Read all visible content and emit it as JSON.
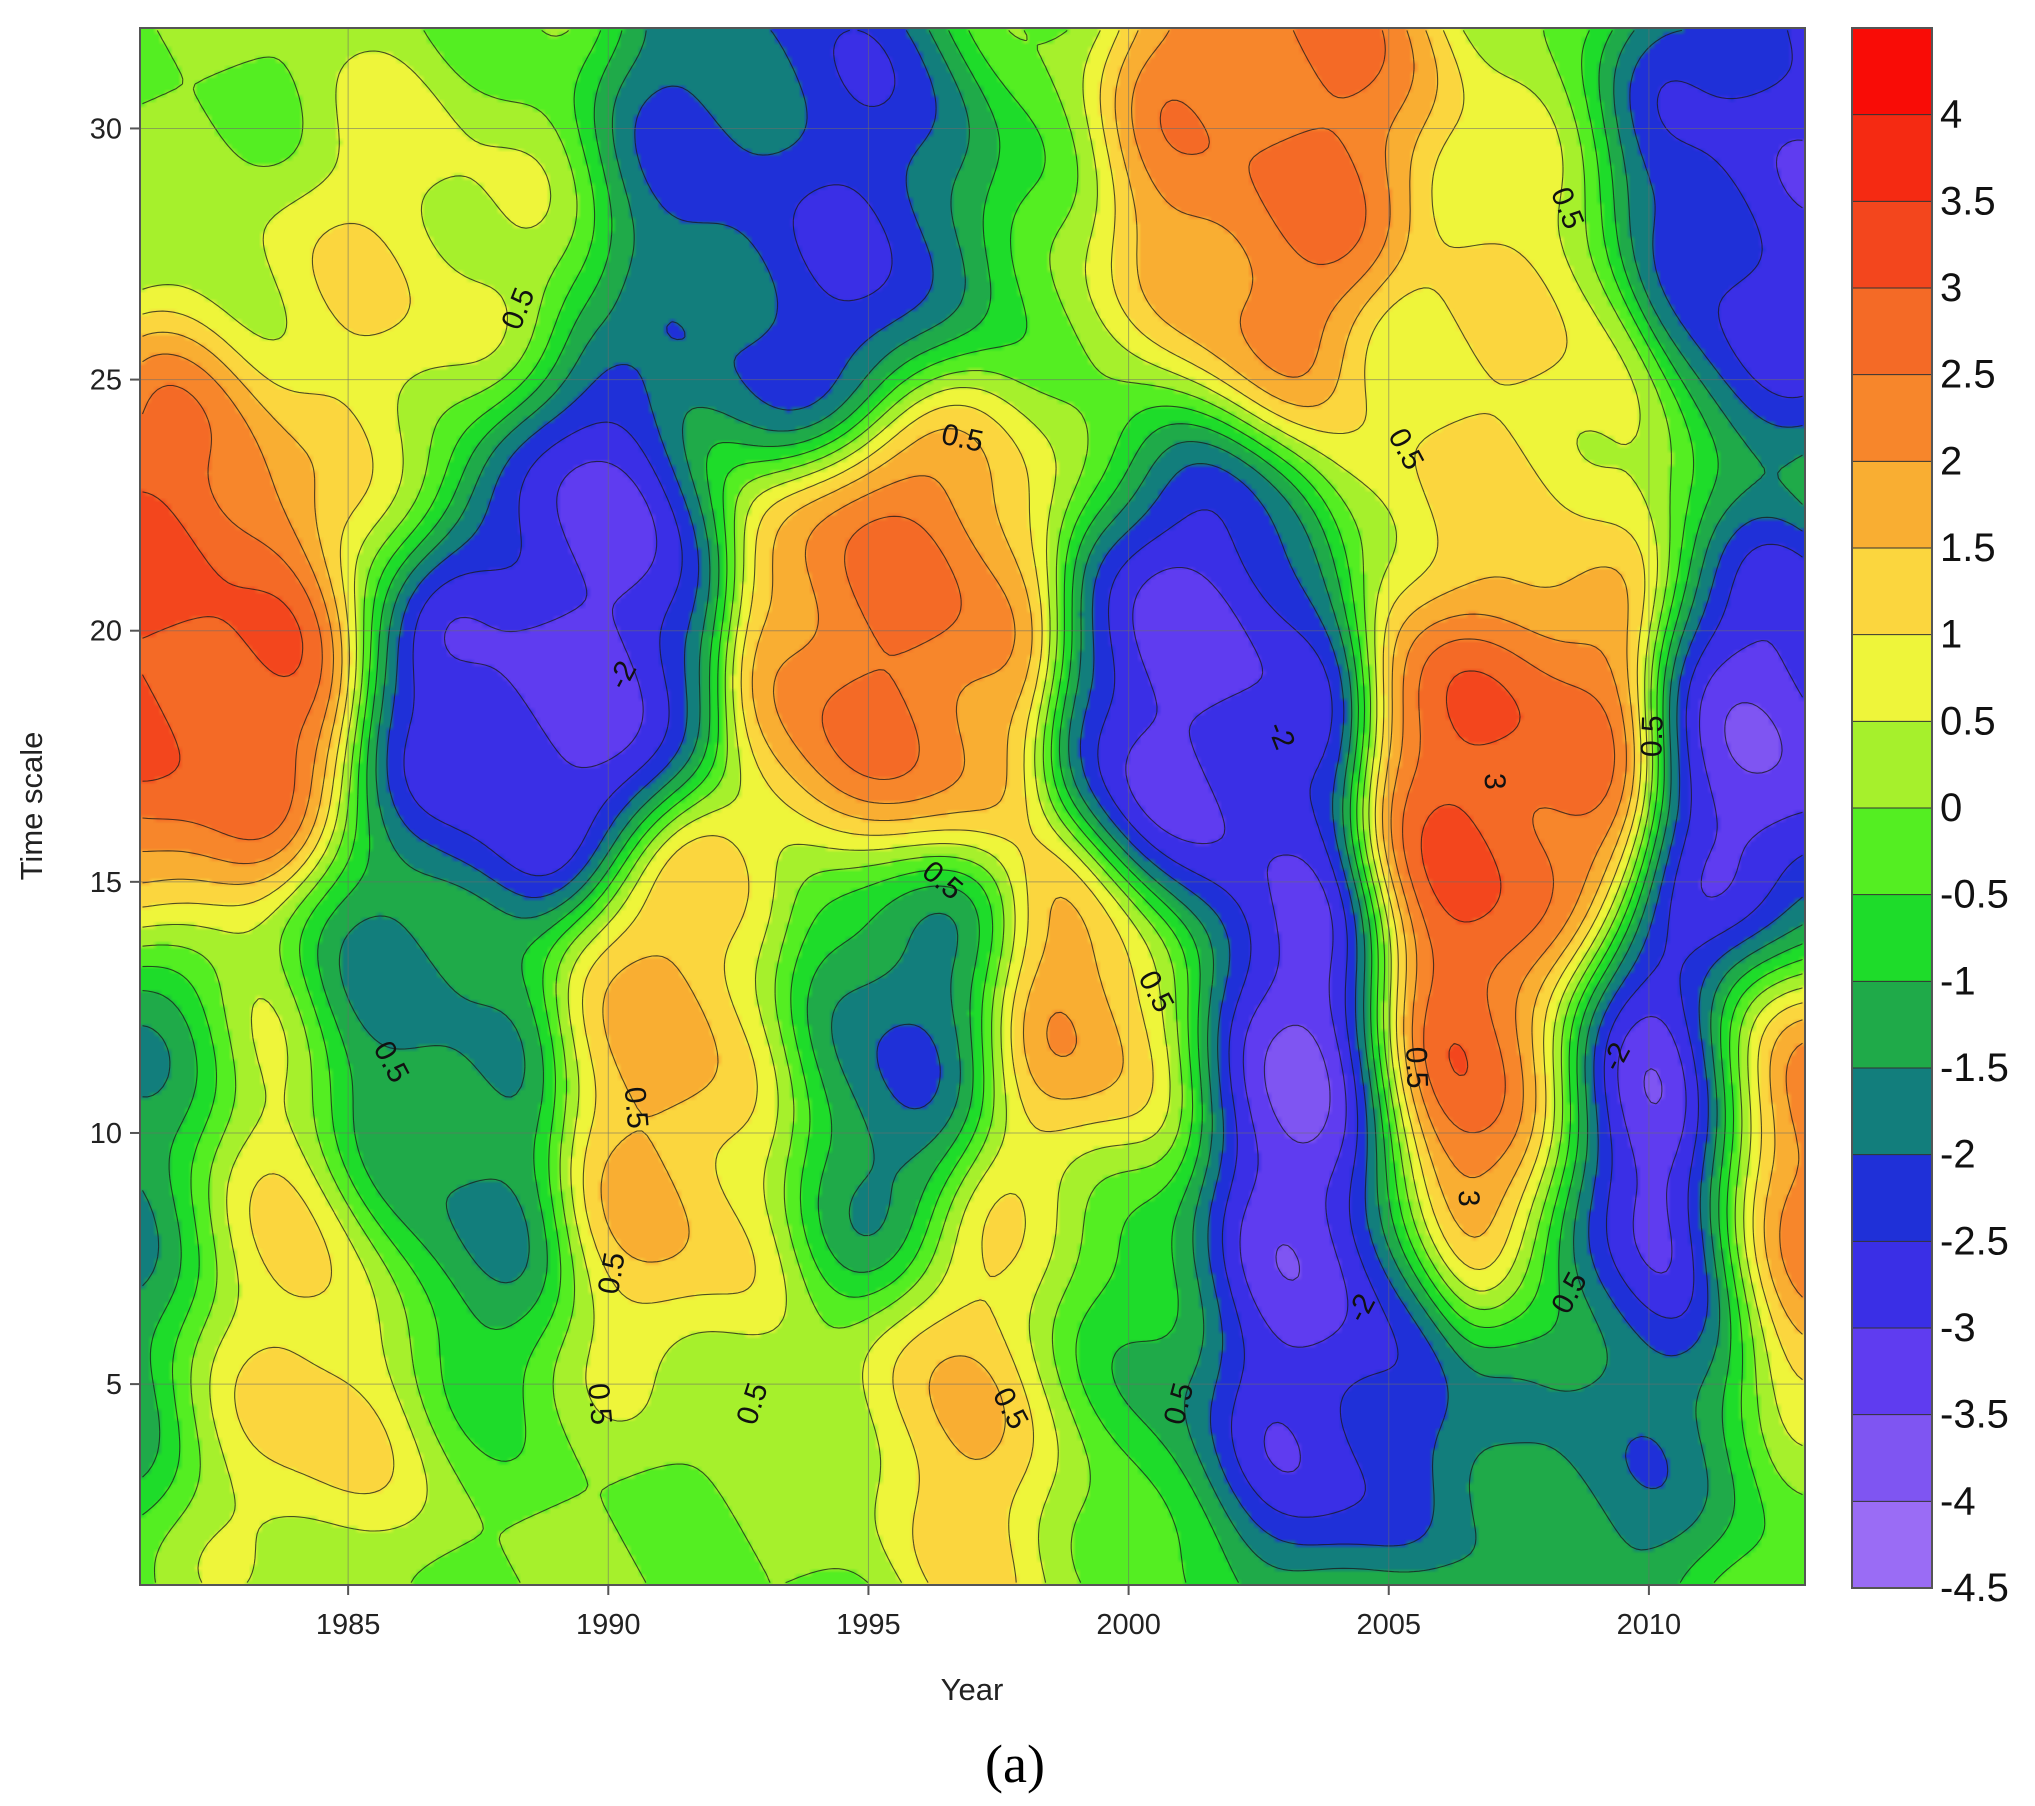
{
  "chart_data": {
    "type": "heatmap",
    "subtype": "filled-contour",
    "title": "",
    "xlabel": "Year",
    "ylabel": "Time scale",
    "xlim": [
      1981,
      2013
    ],
    "ylim": [
      1,
      32
    ],
    "xticks": [
      1985,
      1990,
      1995,
      2000,
      2005,
      2010
    ],
    "yticks": [
      5,
      10,
      15,
      20,
      25,
      30
    ],
    "grid": true,
    "panel_label": "(a)",
    "colorbar": {
      "position": "right",
      "levels": [
        -4.5,
        -4,
        -3.5,
        -3,
        -2.5,
        -2,
        -1.5,
        -1,
        -0.5,
        0,
        0.5,
        1,
        1.5,
        2,
        2.5,
        3,
        3.5,
        4
      ],
      "tick_labels": [
        "4",
        "3.5",
        "3",
        "2.5",
        "2",
        "1.5",
        "1",
        "0.5",
        "0",
        "-0.5",
        "-1",
        "-1.5",
        "-2",
        "-2.5",
        "-3",
        "-3.5",
        "-4",
        "-4.5"
      ],
      "colors": [
        "#9a6cf5",
        "#7f55f2",
        "#5f3cf0",
        "#3a2fe6",
        "#1f30d8",
        "#127e7c",
        "#1faa49",
        "#1edc2a",
        "#54ee22",
        "#a6f02c",
        "#eef53a",
        "#fbd63e",
        "#f9ae32",
        "#f7862b",
        "#f46a26",
        "#f3461d",
        "#f52a12",
        "#f90c06"
      ]
    },
    "features": [
      {
        "x": 1982,
        "y": 20,
        "value": 3.2
      },
      {
        "x": 1983.5,
        "y": 7.5,
        "value": 1.8
      },
      {
        "x": 1988.5,
        "y": 20,
        "value": -3.3
      },
      {
        "x": 1989,
        "y": 20,
        "value": -3.0
      },
      {
        "x": 1986.5,
        "y": 10.5,
        "value": -1.7
      },
      {
        "x": 1991.5,
        "y": 11.3,
        "value": 1.6
      },
      {
        "x": 1994,
        "y": 28.5,
        "value": -2.6
      },
      {
        "x": 1993,
        "y": 30,
        "value": -2.0
      },
      {
        "x": 1995.5,
        "y": 19.5,
        "value": 2.6
      },
      {
        "x": 1995.5,
        "y": 11.5,
        "value": -2.0
      },
      {
        "x": 1999.5,
        "y": 11,
        "value": 2.3
      },
      {
        "x": 1998,
        "y": 6,
        "value": 1.9
      },
      {
        "x": 1999.5,
        "y": 6.8,
        "value": -2.0
      },
      {
        "x": 2001.5,
        "y": 18,
        "value": -3.2
      },
      {
        "x": 2003,
        "y": 10.5,
        "value": -3.8
      },
      {
        "x": 2004,
        "y": 6.5,
        "value": -3.0
      },
      {
        "x": 2003,
        "y": 30,
        "value": 2.6
      },
      {
        "x": 2007.5,
        "y": 17,
        "value": 3.1
      },
      {
        "x": 2006.8,
        "y": 10.5,
        "value": 3.3
      },
      {
        "x": 2010,
        "y": 10.1,
        "value": -4.3
      },
      {
        "x": 2012.5,
        "y": 29,
        "value": -2.8
      },
      {
        "x": 2012.5,
        "y": 16.5,
        "value": -3.4
      },
      {
        "x": 2012.8,
        "y": 10.3,
        "value": 2.6
      },
      {
        "x": 1981.5,
        "y": 8,
        "value": -1.8
      },
      {
        "x": 2009,
        "y": 5,
        "value": -1.7
      },
      {
        "x": 1986,
        "y": 25,
        "value": 0.9
      },
      {
        "x": 2007,
        "y": 24,
        "value": 1.0
      }
    ],
    "contour_labels": [
      {
        "text": "0.5",
        "x": 1988.3,
        "y": 26.4,
        "angle": -68
      },
      {
        "text": "0.5",
        "x": 1985.8,
        "y": 11.4,
        "angle": 62
      },
      {
        "text": "0.5",
        "x": 1990.5,
        "y": 10.5,
        "angle": 85
      },
      {
        "text": "0.5",
        "x": 1990.1,
        "y": 7.2,
        "angle": -80
      },
      {
        "text": "0.5",
        "x": 1989.8,
        "y": 4.6,
        "angle": 85
      },
      {
        "text": "0.5",
        "x": 1992.8,
        "y": 4.6,
        "angle": -72
      },
      {
        "text": "0.5",
        "x": 1996.8,
        "y": 23.8,
        "angle": 12
      },
      {
        "text": "0.5",
        "x": 1996.4,
        "y": 15,
        "angle": 40
      },
      {
        "text": "0.5",
        "x": 1997.7,
        "y": 4.5,
        "angle": 62
      },
      {
        "text": "0.5",
        "x": 2000.5,
        "y": 12.8,
        "angle": 62
      },
      {
        "text": "0.5",
        "x": 2001,
        "y": 4.6,
        "angle": -75
      },
      {
        "text": "0.5",
        "x": 2005.5,
        "y": 11.3,
        "angle": 88
      },
      {
        "text": "0.5",
        "x": 2005.3,
        "y": 23.6,
        "angle": 62
      },
      {
        "text": "0.5",
        "x": 2008.4,
        "y": 28.4,
        "angle": 68
      },
      {
        "text": "0.5",
        "x": 2008.5,
        "y": 6.8,
        "angle": -62
      },
      {
        "text": "0.5",
        "x": 2010.1,
        "y": 17.9,
        "angle": -88
      },
      {
        "text": "-2",
        "x": 1990.3,
        "y": 19.1,
        "angle": -62
      },
      {
        "text": "-2",
        "x": 2002.9,
        "y": 17.9,
        "angle": 68
      },
      {
        "text": "-2",
        "x": 2004.5,
        "y": 6.5,
        "angle": -62
      },
      {
        "text": "-2",
        "x": 2009.4,
        "y": 11.5,
        "angle": -62
      },
      {
        "text": "3",
        "x": 2007,
        "y": 17,
        "angle": 88
      },
      {
        "text": "3",
        "x": 2006.5,
        "y": 8.7,
        "angle": 88
      }
    ]
  }
}
